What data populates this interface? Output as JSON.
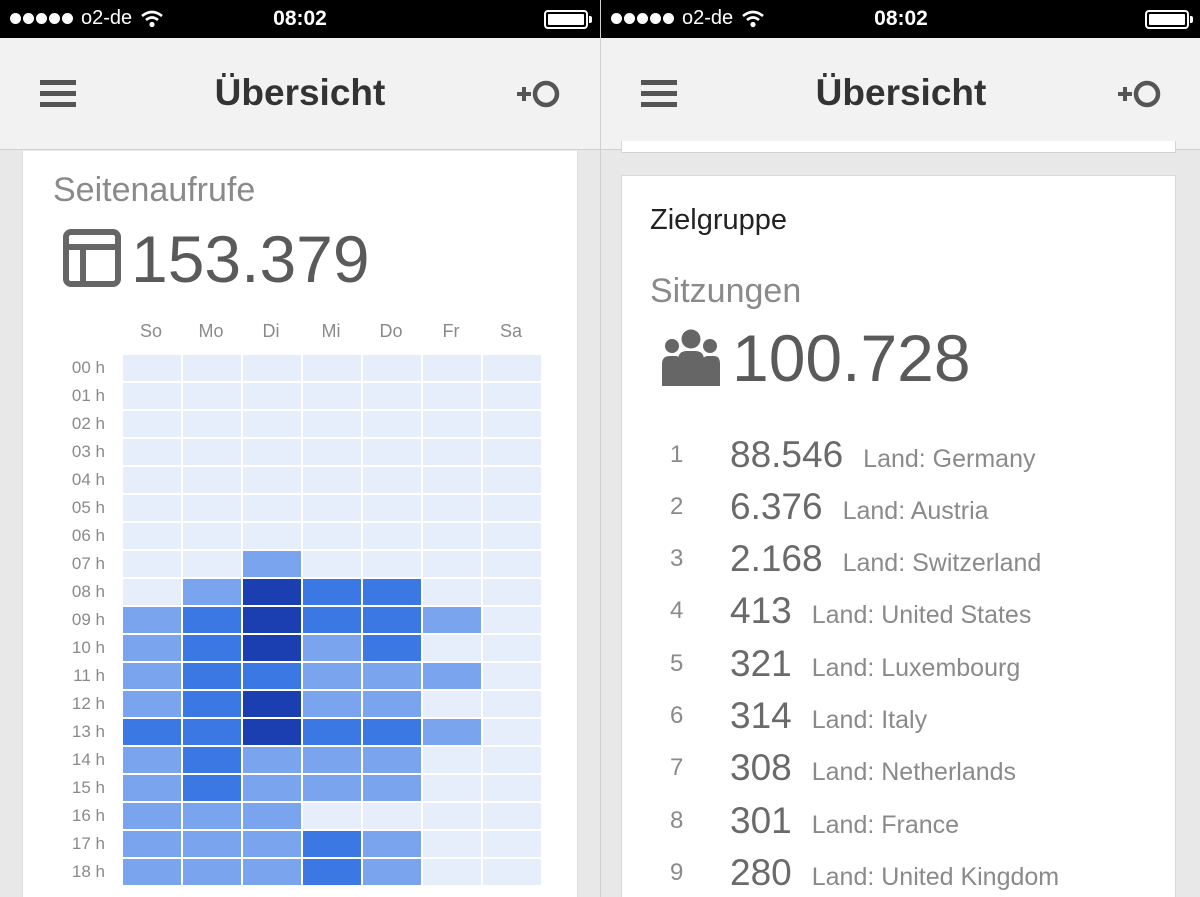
{
  "status_bar": {
    "carrier": "o2-de",
    "time": "08:02"
  },
  "header": {
    "title": "Übersicht"
  },
  "pageviews_card": {
    "label": "Seitenaufrufe",
    "value": "153.379",
    "days": [
      "So",
      "Mo",
      "Di",
      "Mi",
      "Do",
      "Fr",
      "Sa"
    ],
    "hours": [
      "00 h",
      "01 h",
      "02 h",
      "03 h",
      "04 h",
      "05 h",
      "06 h",
      "07 h",
      "08 h",
      "09 h",
      "10 h",
      "11 h",
      "12 h",
      "13 h",
      "14 h",
      "15 h",
      "16 h",
      "17 h",
      "18 h"
    ],
    "heat_levels": [
      [
        0,
        0,
        0,
        0,
        0,
        0,
        0
      ],
      [
        0,
        0,
        0,
        0,
        0,
        0,
        0
      ],
      [
        0,
        0,
        0,
        0,
        0,
        0,
        0
      ],
      [
        0,
        0,
        0,
        0,
        0,
        0,
        0
      ],
      [
        0,
        0,
        0,
        0,
        0,
        0,
        0
      ],
      [
        0,
        0,
        0,
        0,
        0,
        0,
        0
      ],
      [
        0,
        0,
        0,
        0,
        0,
        0,
        0
      ],
      [
        0,
        0,
        1,
        0,
        0,
        0,
        0
      ],
      [
        0,
        1,
        3,
        2,
        2,
        0,
        0
      ],
      [
        1,
        2,
        3,
        2,
        2,
        1,
        0
      ],
      [
        1,
        2,
        3,
        1,
        2,
        0,
        0
      ],
      [
        1,
        2,
        2,
        1,
        1,
        1,
        0
      ],
      [
        1,
        2,
        3,
        1,
        1,
        0,
        0
      ],
      [
        2,
        2,
        3,
        2,
        2,
        1,
        0
      ],
      [
        1,
        2,
        1,
        1,
        1,
        0,
        0
      ],
      [
        1,
        2,
        1,
        1,
        1,
        0,
        0
      ],
      [
        1,
        1,
        1,
        0,
        0,
        0,
        0
      ],
      [
        1,
        1,
        1,
        2,
        1,
        0,
        0
      ],
      [
        1,
        1,
        1,
        2,
        1,
        0,
        0
      ]
    ],
    "heat_colors": [
      "#e6edfb",
      "#7aa5ee",
      "#3b78e3",
      "#1b3fb0"
    ]
  },
  "audience_card": {
    "title": "Zielgruppe",
    "label": "Sitzungen",
    "value": "100.728",
    "rows": [
      {
        "rank": "1",
        "value": "88.546",
        "name": "Land: Germany"
      },
      {
        "rank": "2",
        "value": "6.376",
        "name": "Land: Austria"
      },
      {
        "rank": "3",
        "value": "2.168",
        "name": "Land: Switzerland"
      },
      {
        "rank": "4",
        "value": "413",
        "name": "Land: United States"
      },
      {
        "rank": "5",
        "value": "321",
        "name": "Land: Luxembourg"
      },
      {
        "rank": "6",
        "value": "314",
        "name": "Land: Italy"
      },
      {
        "rank": "7",
        "value": "308",
        "name": "Land: Netherlands"
      },
      {
        "rank": "8",
        "value": "301",
        "name": "Land: France"
      },
      {
        "rank": "9",
        "value": "280",
        "name": "Land: United Kingdom"
      }
    ]
  }
}
